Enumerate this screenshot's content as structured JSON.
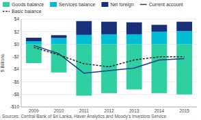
{
  "chart_data": {
    "type": "bar",
    "stacked": true,
    "categories": [
      "2009",
      "2010",
      "2011",
      "2012",
      "2013",
      "2014",
      "2015"
    ],
    "ylabel": "$ Billions",
    "ylim": [
      -10,
      4
    ],
    "yticks": [
      {
        "value": -10,
        "label": "-$10"
      },
      {
        "value": -8,
        "label": "-$8"
      },
      {
        "value": -6,
        "label": "-$6"
      },
      {
        "value": -4,
        "label": "-$4"
      },
      {
        "value": -2,
        "label": "-$2"
      },
      {
        "value": 0,
        "label": "$0"
      },
      {
        "value": 2,
        "label": "$2"
      },
      {
        "value": 4,
        "label": "$4"
      }
    ],
    "grid": true,
    "legend": "top",
    "annotations": [
      "Sources: Central Bank of Sri Lanka, Haver Analytics and Moody's Investors Service"
    ],
    "series": [
      {
        "name": "Goods balance",
        "type": "bar",
        "color": "#2ecfa0",
        "values": [
          -3.0,
          -4.5,
          -8.2,
          -7.8,
          -7.2,
          -7.8,
          -8.0
        ]
      },
      {
        "name": "Services balance",
        "type": "bar",
        "color": "#00bcd4",
        "values": [
          0.5,
          1.0,
          1.5,
          1.6,
          1.6,
          2.0,
          2.1
        ]
      },
      {
        "name": "Net foreign",
        "type": "bar",
        "color": "#1a2f7a",
        "values": [
          0.55,
          0.45,
          2.2,
          2.0,
          1.9,
          1.1,
          1.5
        ]
      },
      {
        "name": "Current account",
        "type": "line",
        "line_style": "solid",
        "color": "#1a3a8a",
        "values": [
          -0.2,
          -1.5,
          -4.6,
          -4.2,
          -3.8,
          -2.5,
          -2.3
        ]
      },
      {
        "name": "Basic balance",
        "type": "line",
        "line_style": "dashed",
        "color": "#222222",
        "values": [
          -0.5,
          -1.7,
          -3.1,
          -3.6,
          -2.5,
          -2.0,
          -2.0
        ]
      }
    ]
  }
}
